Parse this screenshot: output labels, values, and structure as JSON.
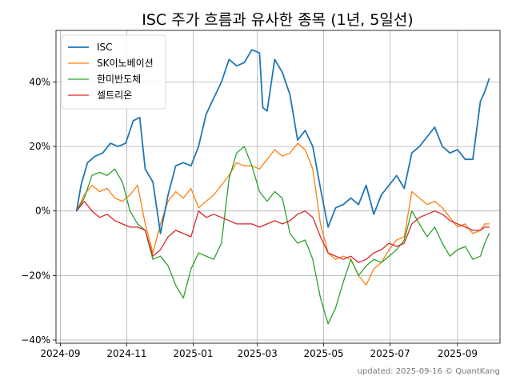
{
  "chart_data": {
    "type": "line",
    "title": "ISC 주가 흐름과 유사한 종목 (1년, 5일선)",
    "footer": "updated: 2025-09-16 © QuantKang",
    "xlabel": "",
    "ylabel": "",
    "x_ticks": [
      "2024-09",
      "2024-11",
      "2025-01",
      "2025-03",
      "2025-05",
      "2025-07",
      "2025-09"
    ],
    "x_tick_dates": [
      "2024-09-01",
      "2024-11-01",
      "2025-01-01",
      "2025-03-01",
      "2025-05-01",
      "2025-07-01",
      "2025-09-01"
    ],
    "y_ticks": [
      "−40%",
      "−20%",
      "0%",
      "20%",
      "40%"
    ],
    "y_tick_values": [
      -40,
      -20,
      0,
      20,
      40
    ],
    "xlim": [
      "2024-08-28",
      "2025-10-10"
    ],
    "ylim": [
      -41,
      56
    ],
    "grid": true,
    "legend_position": "top-left",
    "unit": "%",
    "series": [
      {
        "name": "ISC",
        "color": "#1f77b4",
        "points": [
          [
            "2024-09-16",
            0
          ],
          [
            "2024-09-20",
            8
          ],
          [
            "2024-09-26",
            15
          ],
          [
            "2024-10-03",
            17
          ],
          [
            "2024-10-10",
            18
          ],
          [
            "2024-10-17",
            21
          ],
          [
            "2024-10-24",
            20
          ],
          [
            "2024-10-31",
            21
          ],
          [
            "2024-11-07",
            28
          ],
          [
            "2024-11-13",
            29
          ],
          [
            "2024-11-18",
            13
          ],
          [
            "2024-11-25",
            9
          ],
          [
            "2024-12-02",
            -7
          ],
          [
            "2024-12-09",
            5
          ],
          [
            "2024-12-16",
            14
          ],
          [
            "2024-12-23",
            15
          ],
          [
            "2024-12-30",
            14
          ],
          [
            "2025-01-06",
            20
          ],
          [
            "2025-01-13",
            30
          ],
          [
            "2025-01-20",
            35
          ],
          [
            "2025-01-27",
            40
          ],
          [
            "2025-02-03",
            47
          ],
          [
            "2025-02-10",
            45
          ],
          [
            "2025-02-17",
            46
          ],
          [
            "2025-02-24",
            50
          ],
          [
            "2025-03-03",
            49
          ],
          [
            "2025-03-06",
            32
          ],
          [
            "2025-03-10",
            31
          ],
          [
            "2025-03-17",
            47
          ],
          [
            "2025-03-24",
            43
          ],
          [
            "2025-03-31",
            36
          ],
          [
            "2025-04-07",
            22
          ],
          [
            "2025-04-14",
            25
          ],
          [
            "2025-04-21",
            20
          ],
          [
            "2025-04-28",
            7
          ],
          [
            "2025-05-05",
            -5
          ],
          [
            "2025-05-12",
            1
          ],
          [
            "2025-05-19",
            2
          ],
          [
            "2025-05-26",
            4
          ],
          [
            "2025-06-02",
            2
          ],
          [
            "2025-06-09",
            8
          ],
          [
            "2025-06-16",
            -1
          ],
          [
            "2025-06-23",
            5
          ],
          [
            "2025-06-30",
            8
          ],
          [
            "2025-07-07",
            11
          ],
          [
            "2025-07-14",
            7
          ],
          [
            "2025-07-21",
            18
          ],
          [
            "2025-07-28",
            20
          ],
          [
            "2025-08-04",
            23
          ],
          [
            "2025-08-11",
            26
          ],
          [
            "2025-08-18",
            20
          ],
          [
            "2025-08-25",
            18
          ],
          [
            "2025-09-01",
            19
          ],
          [
            "2025-09-08",
            16
          ],
          [
            "2025-09-15",
            16
          ],
          [
            "2025-09-22",
            34
          ],
          [
            "2025-09-26",
            37
          ],
          [
            "2025-09-30",
            41
          ]
        ]
      },
      {
        "name": "SK이노베이션",
        "color": "#ff7f0e",
        "points": [
          [
            "2024-09-16",
            0
          ],
          [
            "2024-09-23",
            5
          ],
          [
            "2024-09-30",
            8
          ],
          [
            "2024-10-07",
            6
          ],
          [
            "2024-10-14",
            7
          ],
          [
            "2024-10-21",
            4
          ],
          [
            "2024-10-28",
            3
          ],
          [
            "2024-11-04",
            5
          ],
          [
            "2024-11-11",
            8
          ],
          [
            "2024-11-18",
            -4
          ],
          [
            "2024-11-25",
            -13
          ],
          [
            "2024-12-02",
            -4
          ],
          [
            "2024-12-09",
            3
          ],
          [
            "2024-12-16",
            6
          ],
          [
            "2024-12-23",
            4
          ],
          [
            "2024-12-30",
            7
          ],
          [
            "2025-01-06",
            1
          ],
          [
            "2025-01-13",
            3
          ],
          [
            "2025-01-20",
            5
          ],
          [
            "2025-01-27",
            8
          ],
          [
            "2025-02-03",
            11
          ],
          [
            "2025-02-10",
            15
          ],
          [
            "2025-02-17",
            14
          ],
          [
            "2025-02-24",
            14
          ],
          [
            "2025-03-03",
            13
          ],
          [
            "2025-03-10",
            16
          ],
          [
            "2025-03-17",
            19
          ],
          [
            "2025-03-24",
            17
          ],
          [
            "2025-03-31",
            18
          ],
          [
            "2025-04-07",
            21
          ],
          [
            "2025-04-14",
            19
          ],
          [
            "2025-04-21",
            13
          ],
          [
            "2025-04-28",
            -4
          ],
          [
            "2025-05-05",
            -13
          ],
          [
            "2025-05-12",
            -15
          ],
          [
            "2025-05-19",
            -14
          ],
          [
            "2025-05-26",
            -15
          ],
          [
            "2025-06-02",
            -20
          ],
          [
            "2025-06-09",
            -23
          ],
          [
            "2025-06-16",
            -18
          ],
          [
            "2025-06-23",
            -16
          ],
          [
            "2025-06-30",
            -12
          ],
          [
            "2025-07-07",
            -9
          ],
          [
            "2025-07-14",
            -8
          ],
          [
            "2025-07-21",
            6
          ],
          [
            "2025-07-28",
            4
          ],
          [
            "2025-08-04",
            2
          ],
          [
            "2025-08-11",
            3
          ],
          [
            "2025-08-18",
            1
          ],
          [
            "2025-08-25",
            -2
          ],
          [
            "2025-09-01",
            -5
          ],
          [
            "2025-09-08",
            -4
          ],
          [
            "2025-09-15",
            -7
          ],
          [
            "2025-09-22",
            -6
          ],
          [
            "2025-09-26",
            -4
          ],
          [
            "2025-09-30",
            -4
          ]
        ]
      },
      {
        "name": "한미반도체",
        "color": "#2ca02c",
        "points": [
          [
            "2024-09-16",
            0
          ],
          [
            "2024-09-23",
            4
          ],
          [
            "2024-09-30",
            11
          ],
          [
            "2024-10-07",
            12
          ],
          [
            "2024-10-14",
            11
          ],
          [
            "2024-10-21",
            13
          ],
          [
            "2024-10-28",
            9
          ],
          [
            "2024-11-04",
            0
          ],
          [
            "2024-11-11",
            -4
          ],
          [
            "2024-11-18",
            -6
          ],
          [
            "2024-11-25",
            -15
          ],
          [
            "2024-12-02",
            -14
          ],
          [
            "2024-12-09",
            -17
          ],
          [
            "2024-12-16",
            -23
          ],
          [
            "2024-12-23",
            -27
          ],
          [
            "2024-12-30",
            -18
          ],
          [
            "2025-01-06",
            -13
          ],
          [
            "2025-01-13",
            -14
          ],
          [
            "2025-01-20",
            -15
          ],
          [
            "2025-01-27",
            -10
          ],
          [
            "2025-02-03",
            10
          ],
          [
            "2025-02-10",
            18
          ],
          [
            "2025-02-17",
            20
          ],
          [
            "2025-02-24",
            14
          ],
          [
            "2025-03-03",
            6
          ],
          [
            "2025-03-10",
            3
          ],
          [
            "2025-03-17",
            6
          ],
          [
            "2025-03-24",
            4
          ],
          [
            "2025-03-31",
            -7
          ],
          [
            "2025-04-07",
            -10
          ],
          [
            "2025-04-14",
            -9
          ],
          [
            "2025-04-21",
            -15
          ],
          [
            "2025-04-28",
            -27
          ],
          [
            "2025-05-05",
            -35
          ],
          [
            "2025-05-12",
            -30
          ],
          [
            "2025-05-19",
            -22
          ],
          [
            "2025-05-26",
            -15
          ],
          [
            "2025-06-02",
            -20
          ],
          [
            "2025-06-09",
            -17
          ],
          [
            "2025-06-16",
            -15
          ],
          [
            "2025-06-23",
            -16
          ],
          [
            "2025-06-30",
            -14
          ],
          [
            "2025-07-07",
            -12
          ],
          [
            "2025-07-14",
            -9
          ],
          [
            "2025-07-21",
            0
          ],
          [
            "2025-07-28",
            -4
          ],
          [
            "2025-08-04",
            -8
          ],
          [
            "2025-08-11",
            -5
          ],
          [
            "2025-08-18",
            -10
          ],
          [
            "2025-08-25",
            -14
          ],
          [
            "2025-09-01",
            -12
          ],
          [
            "2025-09-08",
            -11
          ],
          [
            "2025-09-15",
            -15
          ],
          [
            "2025-09-22",
            -14
          ],
          [
            "2025-09-26",
            -10
          ],
          [
            "2025-09-30",
            -7
          ]
        ]
      },
      {
        "name": "셀트리온",
        "color": "#d62728",
        "points": [
          [
            "2024-09-16",
            0
          ],
          [
            "2024-09-23",
            3
          ],
          [
            "2024-09-30",
            0
          ],
          [
            "2024-10-07",
            -2
          ],
          [
            "2024-10-14",
            -1
          ],
          [
            "2024-10-21",
            -3
          ],
          [
            "2024-10-28",
            -4
          ],
          [
            "2024-11-04",
            -5
          ],
          [
            "2024-11-11",
            -5
          ],
          [
            "2024-11-18",
            -6
          ],
          [
            "2024-11-25",
            -14
          ],
          [
            "2024-12-02",
            -12
          ],
          [
            "2024-12-09",
            -8
          ],
          [
            "2024-12-16",
            -6
          ],
          [
            "2024-12-23",
            -7
          ],
          [
            "2024-12-30",
            -8
          ],
          [
            "2025-01-06",
            0
          ],
          [
            "2025-01-13",
            -2
          ],
          [
            "2025-01-20",
            -1
          ],
          [
            "2025-01-27",
            -2
          ],
          [
            "2025-02-03",
            -3
          ],
          [
            "2025-02-10",
            -4
          ],
          [
            "2025-02-17",
            -4
          ],
          [
            "2025-02-24",
            -4
          ],
          [
            "2025-03-03",
            -5
          ],
          [
            "2025-03-10",
            -4
          ],
          [
            "2025-03-17",
            -3
          ],
          [
            "2025-03-24",
            -4
          ],
          [
            "2025-03-31",
            -3
          ],
          [
            "2025-04-07",
            -1
          ],
          [
            "2025-04-14",
            0
          ],
          [
            "2025-04-21",
            -2
          ],
          [
            "2025-04-28",
            -8
          ],
          [
            "2025-05-05",
            -13
          ],
          [
            "2025-05-12",
            -14
          ],
          [
            "2025-05-19",
            -15
          ],
          [
            "2025-05-26",
            -14
          ],
          [
            "2025-06-02",
            -16
          ],
          [
            "2025-06-09",
            -15
          ],
          [
            "2025-06-16",
            -13
          ],
          [
            "2025-06-23",
            -12
          ],
          [
            "2025-06-30",
            -10
          ],
          [
            "2025-07-07",
            -11
          ],
          [
            "2025-07-14",
            -10
          ],
          [
            "2025-07-21",
            -4
          ],
          [
            "2025-07-28",
            -2
          ],
          [
            "2025-08-04",
            -1
          ],
          [
            "2025-08-11",
            0
          ],
          [
            "2025-08-18",
            -1
          ],
          [
            "2025-08-25",
            -3
          ],
          [
            "2025-09-01",
            -4
          ],
          [
            "2025-09-08",
            -5
          ],
          [
            "2025-09-15",
            -6
          ],
          [
            "2025-09-22",
            -6
          ],
          [
            "2025-09-26",
            -5
          ],
          [
            "2025-09-30",
            -5
          ]
        ]
      }
    ]
  }
}
